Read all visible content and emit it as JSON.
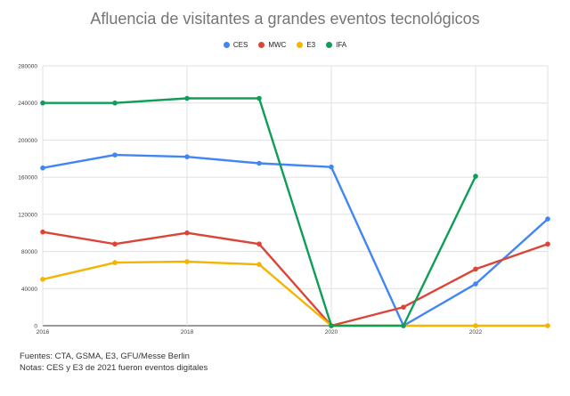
{
  "chart_data": {
    "type": "line",
    "title": "Afluencia de visitantes a grandes eventos tecnológicos",
    "x": [
      2016,
      2017,
      2018,
      2019,
      2020,
      2021,
      2022,
      2023
    ],
    "x_tick_labels": [
      "2016",
      "2018",
      "2020",
      "2022"
    ],
    "ylim": [
      0,
      280000
    ],
    "y_tick_labels": [
      "0",
      "40000",
      "80000",
      "120000",
      "160000",
      "200000",
      "240000",
      "280000"
    ],
    "grid": true,
    "legend_position": "top",
    "series": [
      {
        "name": "CES",
        "color": "#4285F4",
        "values": [
          170000,
          184000,
          182000,
          175000,
          171000,
          0,
          45000,
          115000
        ]
      },
      {
        "name": "MWC",
        "color": "#DB4437",
        "values": [
          101000,
          88000,
          100000,
          88000,
          0,
          20000,
          61000,
          88000
        ]
      },
      {
        "name": "E3",
        "color": "#F4B400",
        "values": [
          50000,
          68000,
          69000,
          66000,
          0,
          0,
          0,
          0
        ]
      },
      {
        "name": "IFA",
        "color": "#0F9D58",
        "values": [
          240000,
          240000,
          245000,
          245000,
          0,
          0,
          161000,
          null
        ]
      }
    ]
  },
  "footer": {
    "sources": "Fuentes: CTA, GSMA, E3, GFU/Messe Berlin",
    "notes": "Notas: CES y E3 de 2021 fueron eventos digitales"
  }
}
